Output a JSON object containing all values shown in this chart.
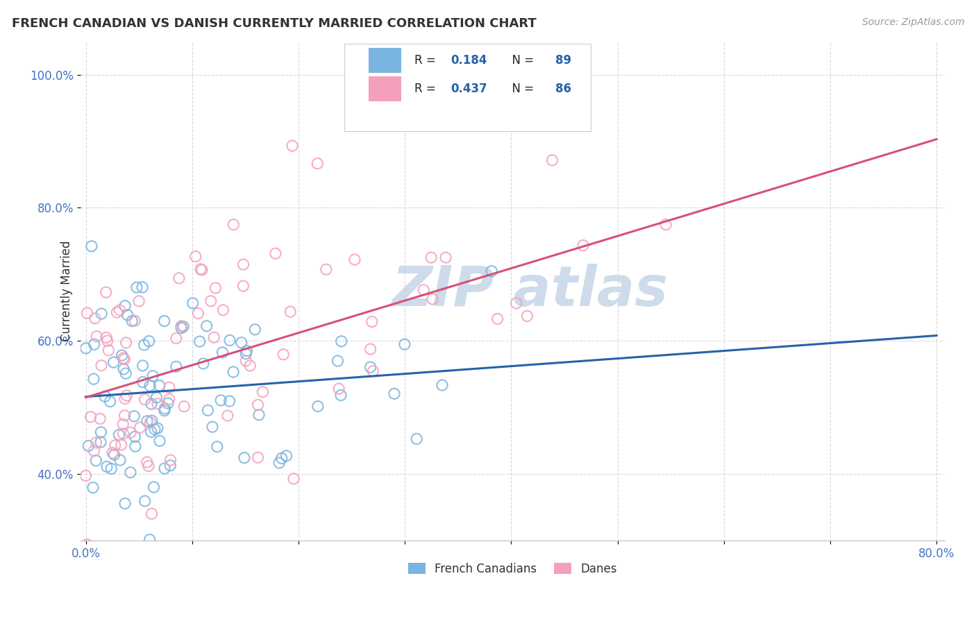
{
  "title": "FRENCH CANADIAN VS DANISH CURRENTLY MARRIED CORRELATION CHART",
  "source": "Source: ZipAtlas.com",
  "ylabel": "Currently Married",
  "legend_r_blue": "0.184",
  "legend_n_blue": "89",
  "legend_r_pink": "0.437",
  "legend_n_pink": "86",
  "blue_scatter_color": "#7ab4e0",
  "pink_scatter_color": "#f4a0bc",
  "blue_line_color": "#2563a8",
  "pink_line_color": "#d94f7a",
  "text_color": "#333333",
  "value_color": "#2563a8",
  "axis_color": "#4472c4",
  "grid_color": "#d8d8d8",
  "background_color": "#ffffff",
  "watermark_color": "#c8d8e8",
  "xlim": [
    0.0,
    0.8
  ],
  "ylim": [
    0.3,
    1.05
  ],
  "x_ticks": [
    0.0,
    0.1,
    0.2,
    0.3,
    0.4,
    0.5,
    0.6,
    0.7,
    0.8
  ],
  "y_ticks": [
    0.4,
    0.6,
    0.8,
    1.0
  ],
  "blue_intercept": 0.516,
  "blue_slope": 0.115,
  "pink_intercept": 0.515,
  "pink_slope": 0.485
}
